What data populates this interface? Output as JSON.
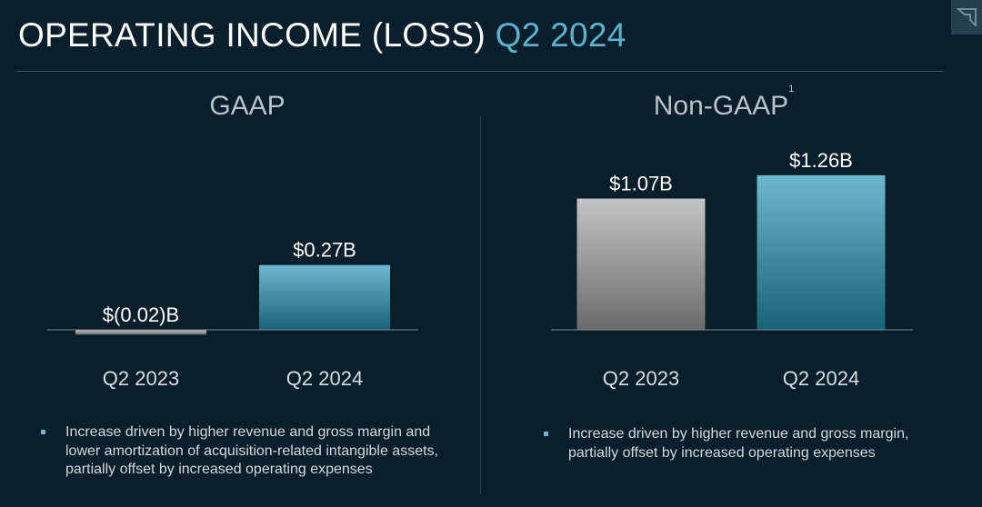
{
  "page": {
    "title_main": "OPERATING INCOME (LOSS)",
    "title_highlight": "Q2 2024",
    "accent_color": "#5ab3cc",
    "logo_icon": "amd-logo-icon"
  },
  "chart_data": [
    {
      "type": "bar",
      "title": "GAAP",
      "categories": [
        "Q2 2023",
        "Q2 2024"
      ],
      "values": [
        -0.02,
        0.27
      ],
      "value_labels": [
        "$(0.02)B",
        "$0.27B"
      ],
      "colors": [
        "#9a9a9a",
        "#3f94ab"
      ],
      "grid": false,
      "bullet": "Increase driven by higher revenue and gross margin and lower amortization of acquisition-related intangible assets, partially offset by increased operating expenses"
    },
    {
      "type": "bar",
      "title": "Non-GAAP",
      "title_superscript": "1",
      "categories": [
        "Q2 2023",
        "Q2 2024"
      ],
      "values": [
        1.07,
        1.26
      ],
      "value_labels": [
        "$1.07B",
        "$1.26B"
      ],
      "colors": [
        "#9a9a9a",
        "#3f94ab"
      ],
      "grid": false,
      "bullet": "Increase driven by higher revenue and gross margin, partially offset by increased operating expenses"
    }
  ]
}
